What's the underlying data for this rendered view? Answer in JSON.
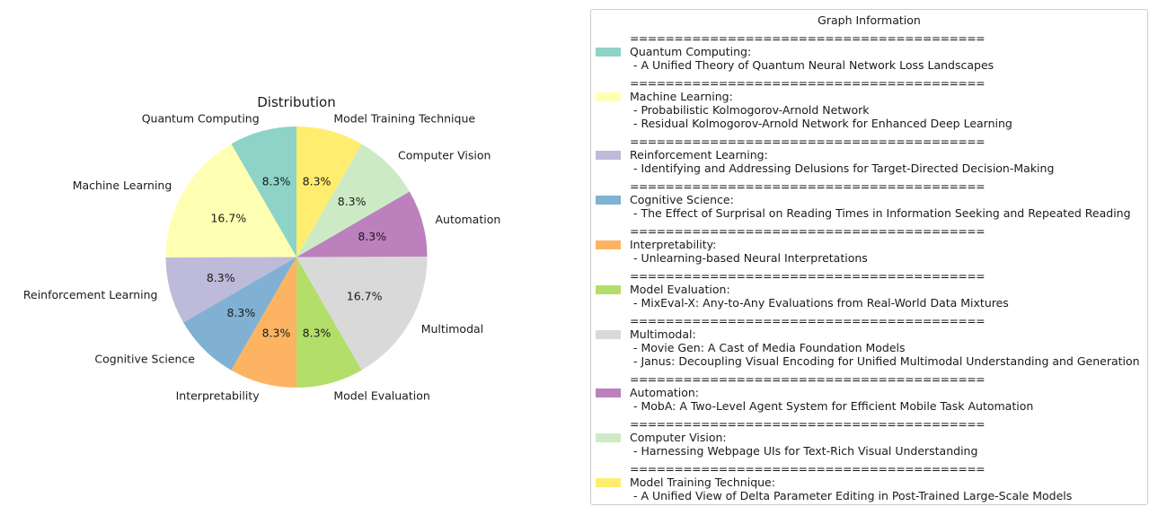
{
  "chart_data": {
    "type": "pie",
    "title": "Distribution",
    "slices": [
      {
        "label": "Quantum Computing",
        "value": 8.3,
        "pct_label": "8.3%",
        "color": "#8dd3c7"
      },
      {
        "label": "Machine Learning",
        "value": 16.7,
        "pct_label": "16.7%",
        "color": "#ffffb3"
      },
      {
        "label": "Reinforcement Learning",
        "value": 8.3,
        "pct_label": "8.3%",
        "color": "#bebada"
      },
      {
        "label": "Cognitive Science",
        "value": 8.3,
        "pct_label": "8.3%",
        "color": "#80b1d3"
      },
      {
        "label": "Interpretability",
        "value": 8.3,
        "pct_label": "8.3%",
        "color": "#fdb462"
      },
      {
        "label": "Model Evaluation",
        "value": 8.3,
        "pct_label": "8.3%",
        "color": "#b3de69"
      },
      {
        "label": "Multimodal",
        "value": 16.7,
        "pct_label": "16.7%",
        "color": "#d9d9d9"
      },
      {
        "label": "Automation",
        "value": 8.3,
        "pct_label": "8.3%",
        "color": "#bc80bd"
      },
      {
        "label": "Computer Vision",
        "value": 8.3,
        "pct_label": "8.3%",
        "color": "#ccebc5"
      },
      {
        "label": "Model Training Technique",
        "value": 8.3,
        "pct_label": "8.3%",
        "color": "#ffed6f"
      }
    ]
  },
  "legend": {
    "title": "Graph Information",
    "separator": "========================================",
    "entries": [
      {
        "category": "Quantum Computing:",
        "items": [
          "- A Unified Theory of Quantum Neural Network Loss Landscapes"
        ]
      },
      {
        "category": "Machine Learning:",
        "items": [
          "- Probabilistic Kolmogorov-Arnold Network",
          "- Residual Kolmogorov-Arnold Network for Enhanced Deep Learning"
        ]
      },
      {
        "category": "Reinforcement Learning:",
        "items": [
          "- Identifying and Addressing Delusions for Target-Directed Decision-Making"
        ]
      },
      {
        "category": "Cognitive Science:",
        "items": [
          "- The Effect of Surprisal on Reading Times in Information Seeking and Repeated Reading"
        ]
      },
      {
        "category": "Interpretability:",
        "items": [
          "- Unlearning-based Neural Interpretations"
        ]
      },
      {
        "category": "Model Evaluation:",
        "items": [
          "- MixEval-X: Any-to-Any Evaluations from Real-World Data Mixtures"
        ]
      },
      {
        "category": "Multimodal:",
        "items": [
          "- Movie Gen: A Cast of Media Foundation Models",
          "- Janus: Decoupling Visual Encoding for Unified Multimodal Understanding and Generation"
        ]
      },
      {
        "category": "Automation:",
        "items": [
          "- MobA: A Two-Level Agent System for Efficient Mobile Task Automation"
        ]
      },
      {
        "category": "Computer Vision:",
        "items": [
          "- Harnessing Webpage UIs for Text-Rich Visual Understanding"
        ]
      },
      {
        "category": "Model Training Technique:",
        "items": [
          "- A Unified View of Delta Parameter Editing in Post-Trained Large-Scale Models"
        ]
      }
    ]
  }
}
